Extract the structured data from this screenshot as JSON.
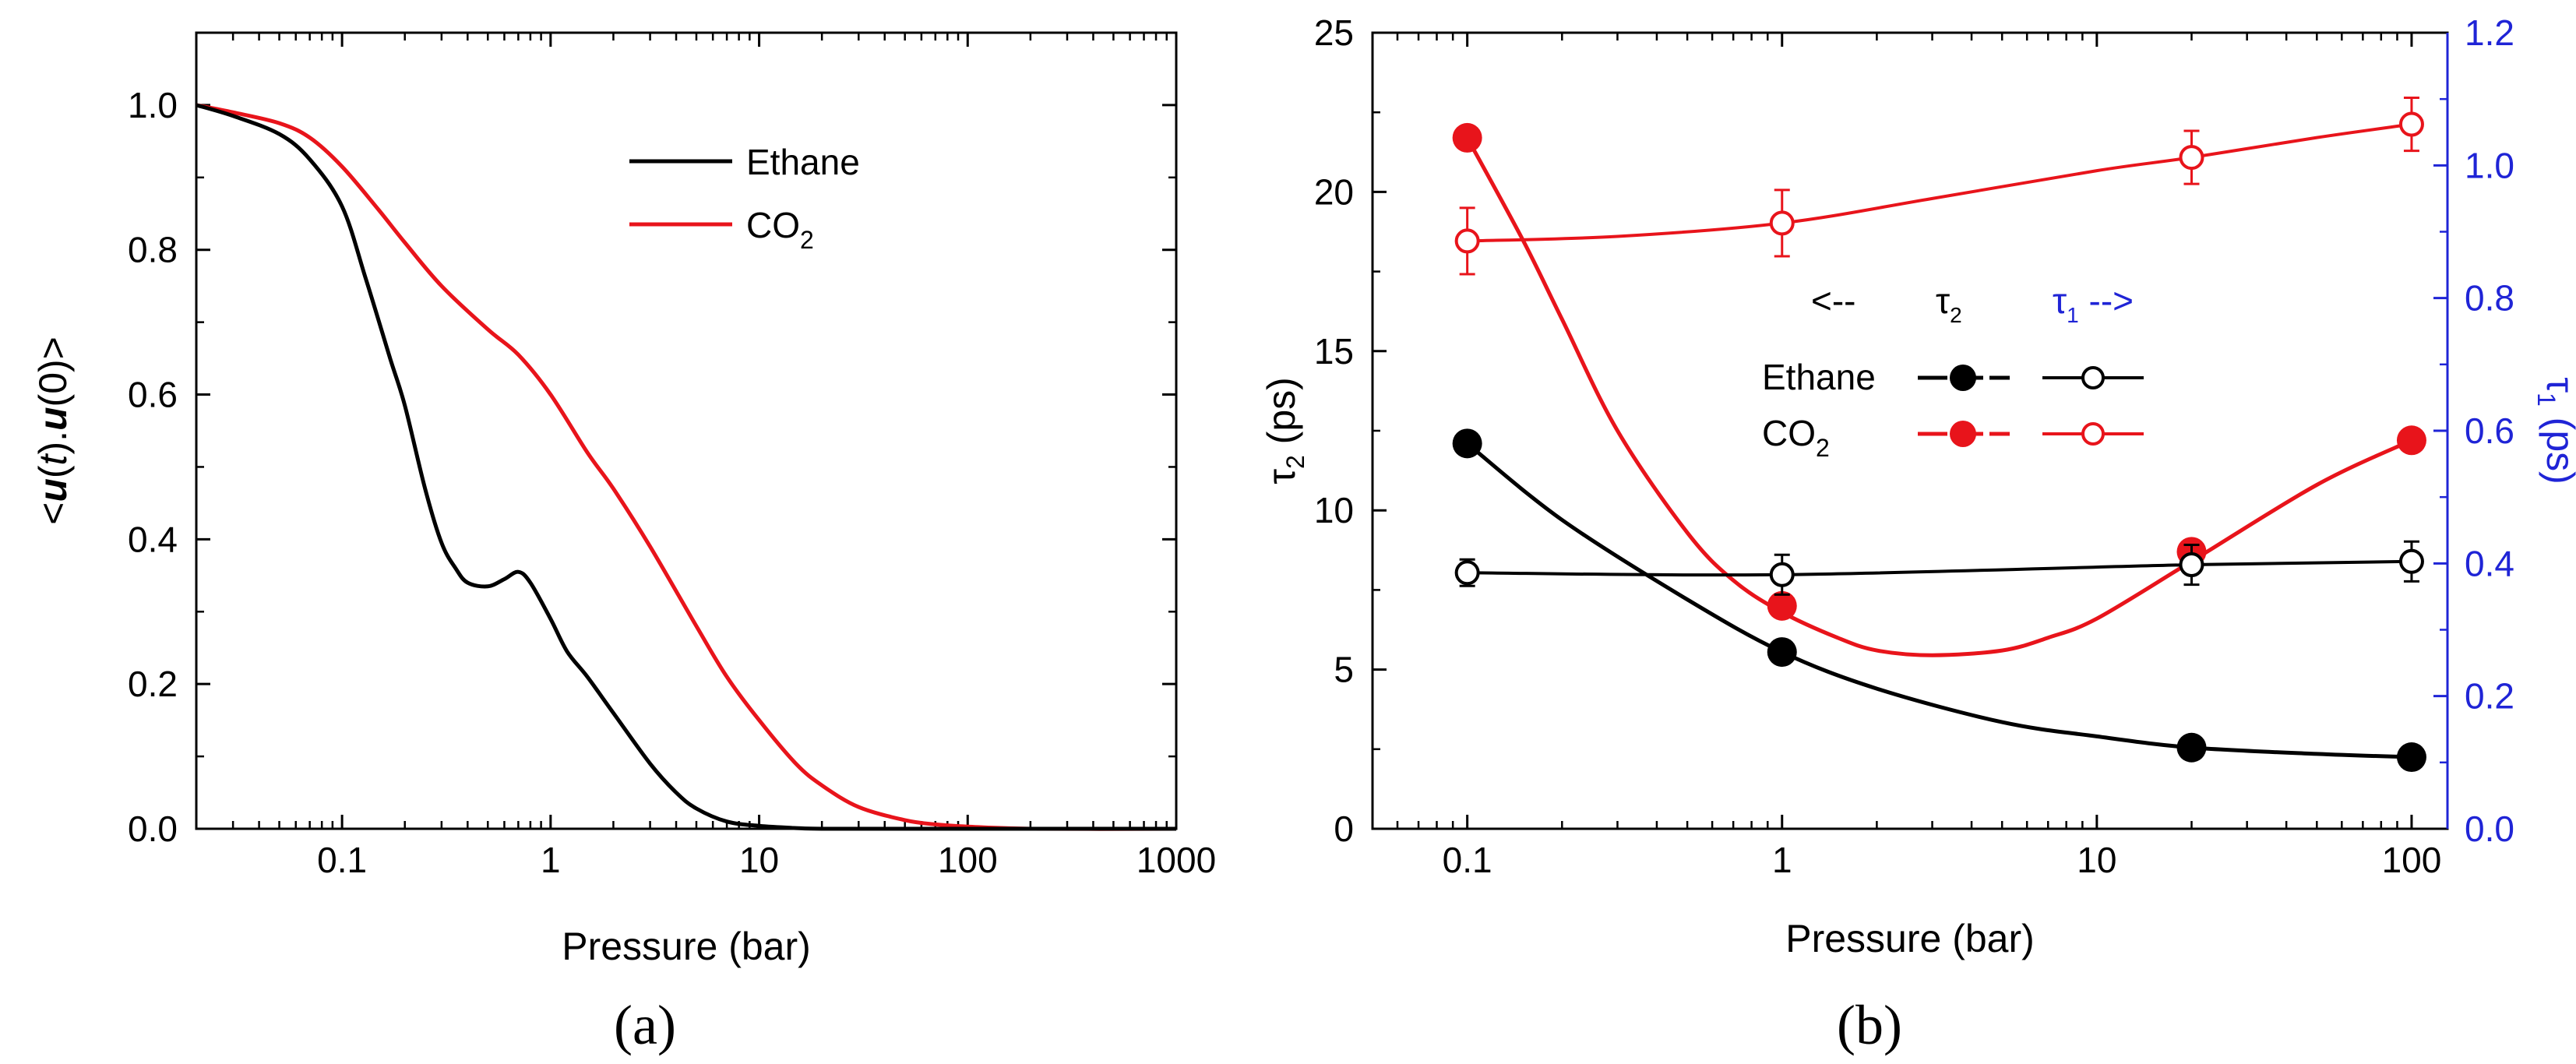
{
  "colors": {
    "black": "#000000",
    "red": "#e8141b",
    "blue": "#1f24d6"
  },
  "chart_data": [
    {
      "id": "a",
      "type": "line",
      "panel_label": "(a)",
      "xlabel": "Pressure (bar)",
      "ylabel": "<u(t).u(0)>",
      "ylabel_parts": [
        "<",
        "u",
        "(",
        "t",
        ").",
        "u",
        "(0)>"
      ],
      "xscale": "log",
      "xlim": [
        0.02,
        1000
      ],
      "ylim": [
        0,
        1.1
      ],
      "xticks": [
        0.1,
        1,
        10,
        100,
        1000
      ],
      "xtick_labels": [
        "0.1",
        "1",
        "10",
        "100",
        "1000"
      ],
      "yticks": [
        0.0,
        0.2,
        0.4,
        0.6,
        0.8,
        1.0
      ],
      "ytick_labels": [
        "0.0",
        "0.2",
        "0.4",
        "0.6",
        "0.8",
        "1.0"
      ],
      "legend": {
        "placement": "upper-right",
        "entries": [
          "Ethane",
          "CO2"
        ],
        "co2_parts": [
          "CO",
          "2"
        ]
      },
      "series": [
        {
          "name": "Ethane",
          "color": "#000000",
          "x": [
            0.02,
            0.03,
            0.05,
            0.07,
            0.1,
            0.13,
            0.17,
            0.2,
            0.25,
            0.3,
            0.35,
            0.4,
            0.5,
            0.6,
            0.7,
            0.8,
            1.0,
            1.2,
            1.5,
            2,
            3,
            4,
            5,
            7,
            10,
            15,
            20,
            50,
            100,
            1000
          ],
          "y": [
            1.0,
            0.985,
            0.96,
            0.925,
            0.86,
            0.76,
            0.65,
            0.585,
            0.47,
            0.395,
            0.36,
            0.34,
            0.335,
            0.345,
            0.355,
            0.34,
            0.29,
            0.245,
            0.21,
            0.16,
            0.09,
            0.05,
            0.028,
            0.01,
            0.004,
            0.001,
            0.0,
            0.0,
            0.0,
            0.0
          ]
        },
        {
          "name": "CO2",
          "color": "#e8141b",
          "x": [
            0.02,
            0.03,
            0.05,
            0.07,
            0.1,
            0.15,
            0.2,
            0.3,
            0.5,
            0.7,
            1.0,
            1.5,
            2,
            3,
            5,
            7,
            10,
            15,
            20,
            30,
            50,
            70,
            100,
            200,
            1000
          ],
          "y": [
            1.0,
            0.99,
            0.975,
            0.955,
            0.915,
            0.855,
            0.81,
            0.75,
            0.69,
            0.655,
            0.6,
            0.52,
            0.47,
            0.39,
            0.28,
            0.21,
            0.15,
            0.09,
            0.06,
            0.03,
            0.012,
            0.006,
            0.003,
            0.0,
            0.0
          ]
        }
      ]
    },
    {
      "id": "b",
      "type": "line",
      "panel_label": "(b)",
      "xlabel": "Pressure (bar)",
      "ylabel": "τ2 (ps)",
      "ylabel_parts": [
        "τ",
        "2",
        " (ps)"
      ],
      "y2label": "τ1 (ps)",
      "y2label_parts": [
        "τ",
        "1",
        " (ps)"
      ],
      "xscale": "log",
      "xlim": [
        0.05,
        130
      ],
      "ylim": [
        0,
        25
      ],
      "y2lim": [
        0,
        1.2
      ],
      "xticks": [
        0.1,
        1,
        10,
        100
      ],
      "xtick_labels": [
        "0.1",
        "1",
        "10",
        "100"
      ],
      "yticks": [
        0,
        5,
        10,
        15,
        20,
        25
      ],
      "ytick_labels": [
        "0",
        "5",
        "10",
        "15",
        "20",
        "25"
      ],
      "y2ticks": [
        0.0,
        0.2,
        0.4,
        0.6,
        0.8,
        1.0,
        1.2
      ],
      "y2tick_labels": [
        "0.0",
        "0.2",
        "0.4",
        "0.6",
        "0.8",
        "1.0",
        "1.2"
      ],
      "legend": {
        "placement": "center-right",
        "arrow_left": "<--",
        "tau2_label": "τ2",
        "tau2_parts": [
          "τ",
          "2"
        ],
        "tau1_label": "τ1 -->",
        "tau1_parts": [
          "τ",
          "1",
          " -->"
        ],
        "entries": [
          "Ethane",
          "CO2"
        ],
        "co2_parts": [
          "CO",
          "2"
        ]
      },
      "series": [
        {
          "name": "Ethane τ2",
          "axis": "left",
          "marker": "filled",
          "color": "#000000",
          "x": [
            0.1,
            1,
            20,
            100
          ],
          "y": [
            12.1,
            5.55,
            2.55,
            2.25
          ],
          "curve_x": [
            0.1,
            0.2,
            0.5,
            1,
            2,
            5,
            10,
            20,
            50,
            100
          ],
          "curve_y": [
            12.1,
            9.7,
            7.2,
            5.55,
            4.4,
            3.35,
            2.9,
            2.55,
            2.35,
            2.25
          ]
        },
        {
          "name": "CO2 τ2",
          "axis": "left",
          "marker": "filled",
          "color": "#e8141b",
          "x": [
            0.1,
            1,
            20,
            100
          ],
          "y": [
            21.7,
            7.0,
            8.7,
            12.2
          ],
          "curve_x": [
            0.1,
            0.15,
            0.2,
            0.3,
            0.5,
            0.7,
            1,
            1.5,
            2,
            3,
            5,
            7,
            10,
            20,
            50,
            100
          ],
          "curve_y": [
            21.7,
            18.5,
            16.0,
            12.5,
            9.3,
            7.8,
            6.8,
            6.0,
            5.6,
            5.45,
            5.6,
            6.0,
            6.6,
            8.4,
            10.8,
            12.2
          ]
        },
        {
          "name": "Ethane τ1",
          "axis": "right",
          "marker": "open",
          "color": "#000000",
          "x": [
            0.1,
            1,
            20,
            100
          ],
          "y": [
            0.386,
            0.383,
            0.398,
            0.403
          ],
          "yerr": [
            0.02,
            0.03,
            0.03,
            0.03
          ],
          "curve_x": [
            0.1,
            1,
            20,
            100
          ],
          "curve_y": [
            0.386,
            0.383,
            0.398,
            0.403
          ]
        },
        {
          "name": "CO2 τ1",
          "axis": "right",
          "marker": "open",
          "color": "#e8141b",
          "x": [
            0.1,
            1,
            20,
            100
          ],
          "y": [
            0.886,
            0.913,
            1.012,
            1.062
          ],
          "yerr": [
            0.05,
            0.05,
            0.04,
            0.04
          ],
          "curve_x": [
            0.1,
            0.3,
            1,
            3,
            10,
            20,
            50,
            100
          ],
          "curve_y": [
            0.886,
            0.893,
            0.913,
            0.95,
            0.992,
            1.012,
            1.042,
            1.062
          ]
        }
      ]
    }
  ]
}
